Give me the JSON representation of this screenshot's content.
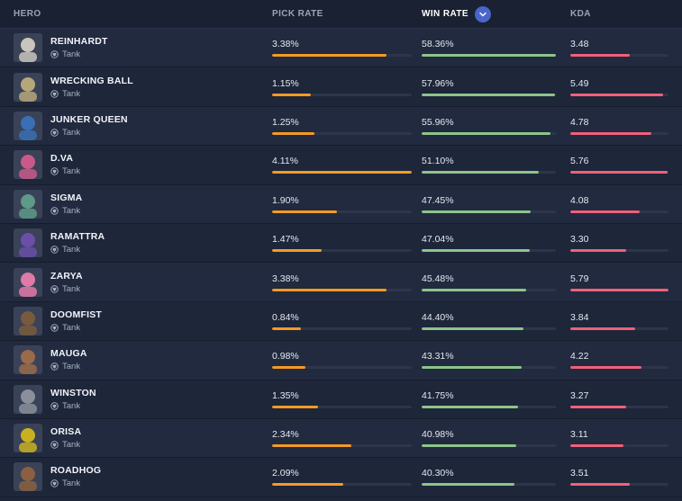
{
  "header": {
    "hero": "HERO",
    "pick_rate": "PICK RATE",
    "win_rate": "WIN RATE",
    "kda": "KDA",
    "sort_icon": "chevron-down-icon"
  },
  "colors": {
    "pick_bar": "#f59a23",
    "win_bar": "#8dc58a",
    "kda_bar": "#f0607a",
    "sort_button": "#4a66c8"
  },
  "heroes": [
    {
      "name": "REINHARDT",
      "role": "Tank",
      "pick": "3.38%",
      "pick_v": 3.38,
      "win": "58.36%",
      "win_v": 58.36,
      "kda": "3.48",
      "kda_v": 3.48,
      "color": "#c9c4bc"
    },
    {
      "name": "WRECKING BALL",
      "role": "Tank",
      "pick": "1.15%",
      "pick_v": 1.15,
      "win": "57.96%",
      "win_v": 57.96,
      "kda": "5.49",
      "kda_v": 5.49,
      "color": "#b5a77a"
    },
    {
      "name": "JUNKER QUEEN",
      "role": "Tank",
      "pick": "1.25%",
      "pick_v": 1.25,
      "win": "55.96%",
      "win_v": 55.96,
      "kda": "4.78",
      "kda_v": 4.78,
      "color": "#3a6fb5"
    },
    {
      "name": "D.VA",
      "role": "Tank",
      "pick": "4.11%",
      "pick_v": 4.11,
      "win": "51.10%",
      "win_v": 51.1,
      "kda": "5.76",
      "kda_v": 5.76,
      "color": "#c85a8a"
    },
    {
      "name": "SIGMA",
      "role": "Tank",
      "pick": "1.90%",
      "pick_v": 1.9,
      "win": "47.45%",
      "win_v": 47.45,
      "kda": "4.08",
      "kda_v": 4.08,
      "color": "#5d9a88"
    },
    {
      "name": "RAMATTRA",
      "role": "Tank",
      "pick": "1.47%",
      "pick_v": 1.47,
      "win": "47.04%",
      "win_v": 47.04,
      "kda": "3.30",
      "kda_v": 3.3,
      "color": "#6a4fa8"
    },
    {
      "name": "ZARYA",
      "role": "Tank",
      "pick": "3.38%",
      "pick_v": 3.38,
      "win": "45.48%",
      "win_v": 45.48,
      "kda": "5.79",
      "kda_v": 5.79,
      "color": "#e07aa8"
    },
    {
      "name": "DOOMFIST",
      "role": "Tank",
      "pick": "0.84%",
      "pick_v": 0.84,
      "win": "44.40%",
      "win_v": 44.4,
      "kda": "3.84",
      "kda_v": 3.84,
      "color": "#7a5a3e"
    },
    {
      "name": "MAUGA",
      "role": "Tank",
      "pick": "0.98%",
      "pick_v": 0.98,
      "win": "43.31%",
      "win_v": 43.31,
      "kda": "4.22",
      "kda_v": 4.22,
      "color": "#9a6a4a"
    },
    {
      "name": "WINSTON",
      "role": "Tank",
      "pick": "1.35%",
      "pick_v": 1.35,
      "win": "41.75%",
      "win_v": 41.75,
      "kda": "3.27",
      "kda_v": 3.27,
      "color": "#8a8f9a"
    },
    {
      "name": "ORISA",
      "role": "Tank",
      "pick": "2.34%",
      "pick_v": 2.34,
      "win": "40.98%",
      "win_v": 40.98,
      "kda": "3.11",
      "kda_v": 3.11,
      "color": "#c8b020"
    },
    {
      "name": "ROADHOG",
      "role": "Tank",
      "pick": "2.09%",
      "pick_v": 2.09,
      "win": "40.30%",
      "win_v": 40.3,
      "kda": "3.51",
      "kda_v": 3.51,
      "color": "#8a6040"
    }
  ],
  "scale": {
    "pick_max": 4.11,
    "win_max": 58.36,
    "kda_max": 5.79
  }
}
